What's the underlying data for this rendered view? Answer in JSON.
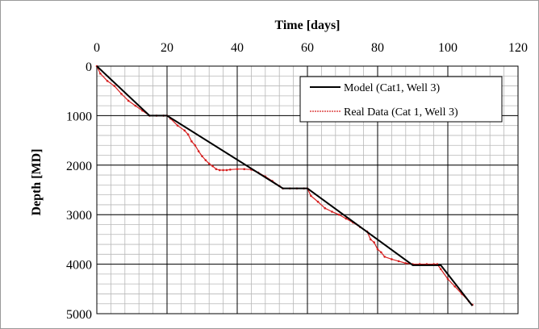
{
  "chart_data": {
    "type": "line",
    "title": "",
    "xlabel": "Time [days]",
    "ylabel": "Depth [MD]",
    "x_axis_position": "top",
    "y_axis_inverted": true,
    "xlim": [
      0,
      120
    ],
    "ylim": [
      0,
      5000
    ],
    "x_ticks": [
      0,
      20,
      40,
      60,
      80,
      100,
      120
    ],
    "y_ticks": [
      0,
      1000,
      2000,
      3000,
      4000,
      5000
    ],
    "x_minor_step": 4,
    "y_minor_step": 200,
    "grid": true,
    "legend_position": "top-right",
    "series": [
      {
        "name": "Model (Cat1, Well 3)",
        "color": "#000000",
        "x": [
          0,
          15,
          20,
          53,
          60,
          90,
          98,
          107
        ],
        "y": [
          0,
          1000,
          1000,
          2470,
          2470,
          4020,
          4020,
          4840
        ]
      },
      {
        "name": "Real Data (Cat 1, Well 3)",
        "color": "#d62020",
        "x": [
          0,
          1,
          3,
          5,
          7,
          9,
          11,
          13,
          15,
          17,
          19,
          20,
          21,
          23,
          25,
          26,
          27,
          28,
          29,
          30,
          31,
          32,
          33,
          34,
          35,
          36,
          37,
          38,
          40,
          42,
          44,
          46,
          48,
          50,
          52,
          53,
          55,
          57,
          59,
          60,
          61,
          63,
          65,
          67,
          69,
          71,
          73,
          75,
          77,
          78,
          79,
          80,
          81,
          82,
          84,
          86,
          88,
          90,
          92,
          94,
          96,
          97,
          98,
          100,
          102,
          104,
          106,
          107
        ],
        "y": [
          0,
          150,
          300,
          400,
          560,
          700,
          800,
          900,
          1000,
          1000,
          1000,
          1000,
          1060,
          1200,
          1300,
          1380,
          1520,
          1600,
          1720,
          1820,
          1900,
          1970,
          2020,
          2080,
          2100,
          2100,
          2100,
          2090,
          2080,
          2080,
          2090,
          2150,
          2230,
          2320,
          2420,
          2470,
          2470,
          2470,
          2470,
          2470,
          2620,
          2740,
          2870,
          2940,
          3000,
          3080,
          3160,
          3250,
          3340,
          3500,
          3560,
          3700,
          3760,
          3850,
          3900,
          3940,
          3980,
          4000,
          4000,
          4000,
          4000,
          4000,
          4100,
          4300,
          4450,
          4600,
          4750,
          4820
        ]
      }
    ]
  }
}
